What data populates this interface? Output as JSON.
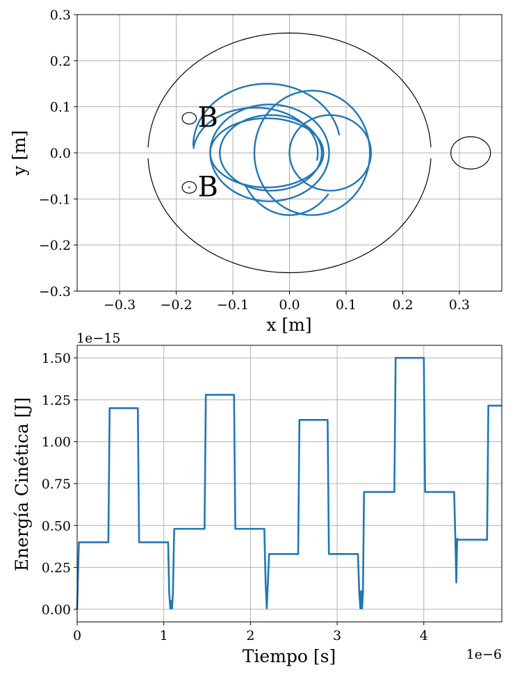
{
  "chart_data": [
    {
      "type": "line",
      "id": "trajectory",
      "xlabel": "x [m]",
      "ylabel": "y [m]",
      "xlim": [
        -0.375,
        0.375
      ],
      "ylim": [
        -0.3,
        0.3
      ],
      "xticks": [
        -0.3,
        -0.2,
        -0.1,
        0.0,
        0.1,
        0.2,
        0.3
      ],
      "xtick_labels": [
        "−0.3",
        "−0.2",
        "−0.1",
        "0.0",
        "0.1",
        "0.2",
        "0.3"
      ],
      "yticks": [
        -0.3,
        -0.2,
        -0.1,
        0.0,
        0.1,
        0.2,
        0.3
      ],
      "ytick_labels": [
        "−0.3",
        "−0.2",
        "−0.1",
        "0.0",
        "0.1",
        "0.2",
        "0.3"
      ],
      "grid": true,
      "series_color": "#1f77b4",
      "outline_color": "#000000",
      "dees": {
        "radius": 0.26,
        "rx": 0.25,
        "gap_half": 0.012
      },
      "source_circle": {
        "cx": 0.32,
        "cy": 0.0,
        "r": 0.035
      },
      "markers": [
        {
          "cx": -0.177,
          "cy": 0.075,
          "r": 0.0125,
          "label": "B",
          "lx": -0.162,
          "ly": 0.078
        },
        {
          "cx": -0.177,
          "cy": -0.075,
          "r": 0.0125,
          "label": "B",
          "lx": -0.162,
          "ly": -0.073
        }
      ],
      "orbits": [
        {
          "cx": -0.033,
          "cy": 0.0,
          "rx": 0.09,
          "ry": 0.082,
          "start_deg": 0,
          "end_deg": 360
        },
        {
          "cx": 0.072,
          "cy": 0.0,
          "rx": 0.072,
          "ry": 0.082,
          "start_deg": 0,
          "end_deg": 360
        },
        {
          "cx": 0.04,
          "cy": 0.0,
          "rx": 0.102,
          "ry": 0.135,
          "start_deg": 0,
          "end_deg": 360
        },
        {
          "cx": -0.035,
          "cy": 0.0,
          "rx": 0.105,
          "ry": 0.105,
          "start_deg": 0,
          "end_deg": 360
        },
        {
          "cx": -0.04,
          "cy": 0.0,
          "rx": 0.1,
          "ry": 0.075,
          "start_deg": 0,
          "end_deg": 360
        },
        {
          "cx": -0.06,
          "cy": 0.0,
          "rx": 0.11,
          "ry": 0.098,
          "start_deg": -10,
          "end_deg": 175
        },
        {
          "cx": -0.04,
          "cy": 0.015,
          "rx": 0.13,
          "ry": 0.135,
          "start_deg": 10,
          "end_deg": 180
        },
        {
          "cx": 0.0,
          "cy": -0.005,
          "rx": 0.09,
          "ry": 0.13,
          "start_deg": 210,
          "end_deg": 320
        }
      ]
    },
    {
      "type": "line",
      "id": "kinetic_energy",
      "xlabel": "Tiempo [s]",
      "ylabel": "Energía Cinética [J]",
      "x_offset_label": "1e−6",
      "y_offset_label": "1e−15",
      "xlim": [
        0,
        4.9
      ],
      "ylim": [
        -0.075,
        1.575
      ],
      "xticks": [
        0,
        1,
        2,
        3,
        4
      ],
      "xtick_labels": [
        "0",
        "1",
        "2",
        "3",
        "4"
      ],
      "yticks": [
        0.0,
        0.25,
        0.5,
        0.75,
        1.0,
        1.25,
        1.5
      ],
      "ytick_labels": [
        "0.00",
        "0.25",
        "0.50",
        "0.75",
        "1.00",
        "1.25",
        "1.50"
      ],
      "grid": true,
      "series_color": "#1f77b4",
      "x": [
        0,
        0.02,
        0.035,
        0.36,
        0.375,
        0.7,
        0.715,
        1.05,
        1.062,
        1.075,
        1.085,
        1.095,
        1.105,
        1.12,
        1.135,
        1.47,
        1.485,
        1.81,
        1.825,
        2.16,
        2.175,
        2.188,
        2.2,
        2.215,
        2.55,
        2.565,
        2.89,
        2.905,
        3.24,
        3.255,
        3.268,
        3.278,
        3.288,
        3.298,
        3.31,
        3.325,
        3.66,
        3.675,
        4.0,
        4.015,
        4.35,
        4.365,
        4.375,
        4.385,
        4.4,
        4.73,
        4.745,
        4.9
      ],
      "y": [
        0,
        0.4,
        0.4,
        0.4,
        1.2,
        1.2,
        0.4,
        0.4,
        0.1,
        0.005,
        0.05,
        0.005,
        0.1,
        0.48,
        0.48,
        0.48,
        1.28,
        1.28,
        0.48,
        0.48,
        0.15,
        0.005,
        0.15,
        0.33,
        0.33,
        1.13,
        1.13,
        0.33,
        0.33,
        0.1,
        0.005,
        0.11,
        0.005,
        0.1,
        0.7,
        0.7,
        0.7,
        1.5,
        1.5,
        0.7,
        0.7,
        0.4,
        0.16,
        0.42,
        0.415,
        0.415,
        1.215,
        1.215
      ]
    }
  ]
}
